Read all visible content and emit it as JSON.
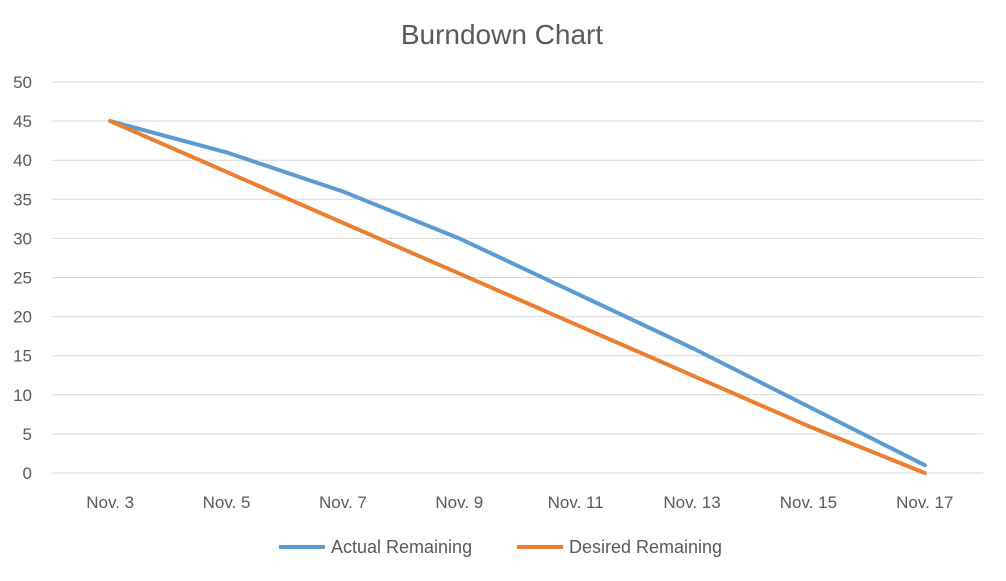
{
  "chart_data": {
    "type": "line",
    "title": "Burndown Chart",
    "xlabel": "",
    "ylabel": "",
    "categories": [
      "Nov. 3",
      "Nov. 5",
      "Nov. 7",
      "Nov. 9",
      "Nov. 11",
      "Nov. 13",
      "Nov. 15",
      "Nov. 17"
    ],
    "ylim": [
      0,
      50
    ],
    "yticks": [
      0,
      5,
      10,
      15,
      20,
      25,
      30,
      35,
      40,
      45,
      50
    ],
    "grid": true,
    "legend_position": "bottom",
    "series": [
      {
        "name": "Actual Remaining",
        "color": "#5b9bd5",
        "values": [
          45,
          41,
          36,
          30,
          23,
          16,
          8.5,
          1
        ]
      },
      {
        "name": "Desired Remaining",
        "color": "#ed7d31",
        "values": [
          45,
          38.5,
          32,
          25.5,
          19,
          12.5,
          6,
          0
        ]
      }
    ]
  }
}
